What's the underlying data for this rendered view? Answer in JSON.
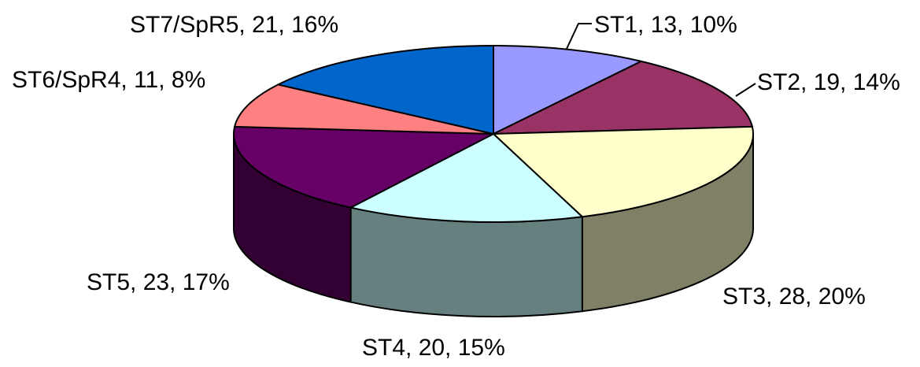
{
  "chart_data": {
    "type": "pie3d",
    "values": [
      13,
      19,
      28,
      20,
      23,
      11,
      21
    ],
    "value_labels": [
      "ST1, 13, 10%",
      "ST2, 19, 14%",
      "ST3, 28, 20%",
      "ST4, 20, 15%",
      "ST5, 23, 17%",
      "ST6/SpR4, 11, 8%",
      "ST7/SpR5, 21, 16%"
    ],
    "colors": [
      "#9999ff",
      "#993366",
      "#ffffcc",
      "#ccffff",
      "#660066",
      "#ff8080",
      "#0066cc"
    ]
  }
}
